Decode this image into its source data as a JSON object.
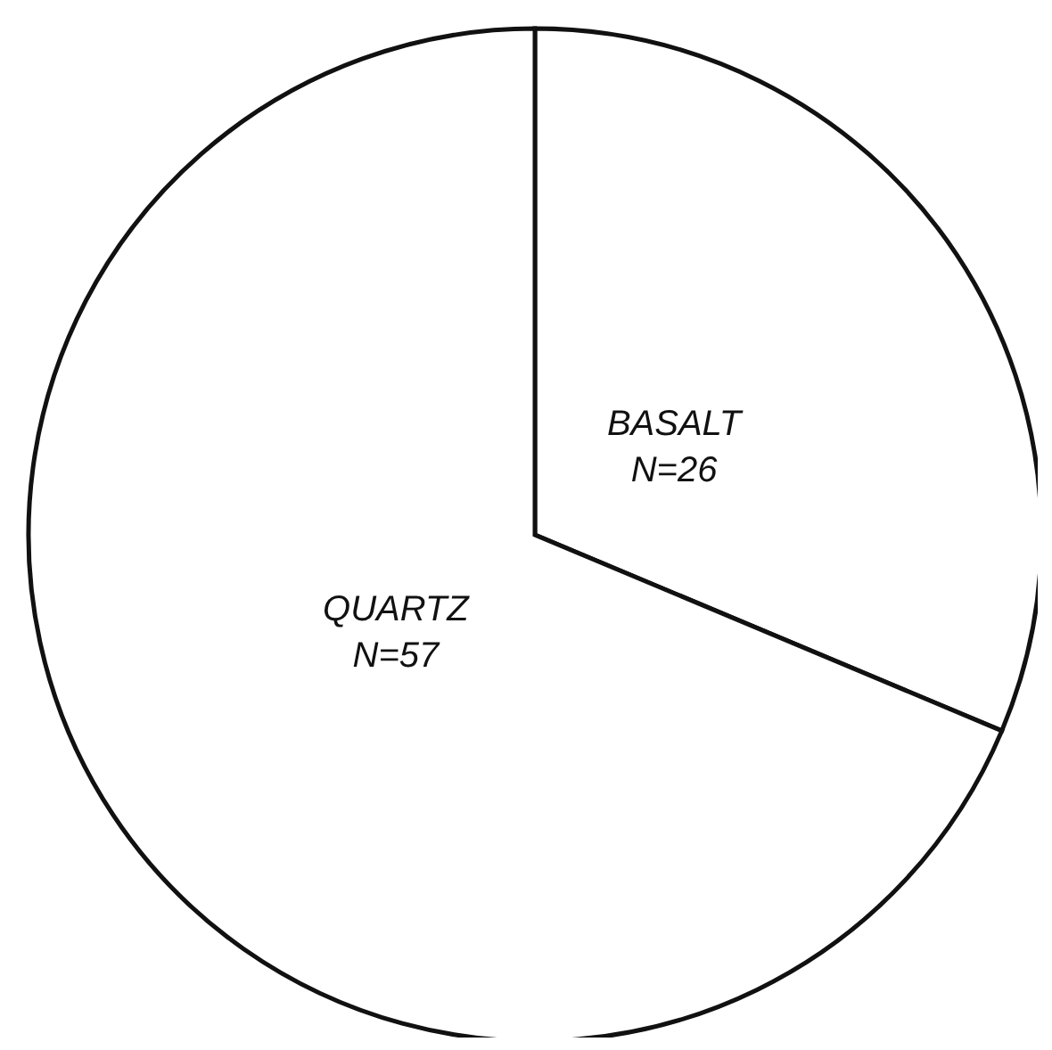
{
  "chart_data": {
    "type": "pie",
    "categories": [
      "BASALT",
      "QUARTZ"
    ],
    "values": [
      26,
      57
    ],
    "value_labels": [
      "N=26",
      "N=57"
    ],
    "colors": [
      "#ffffff",
      "#ffffff"
    ]
  }
}
